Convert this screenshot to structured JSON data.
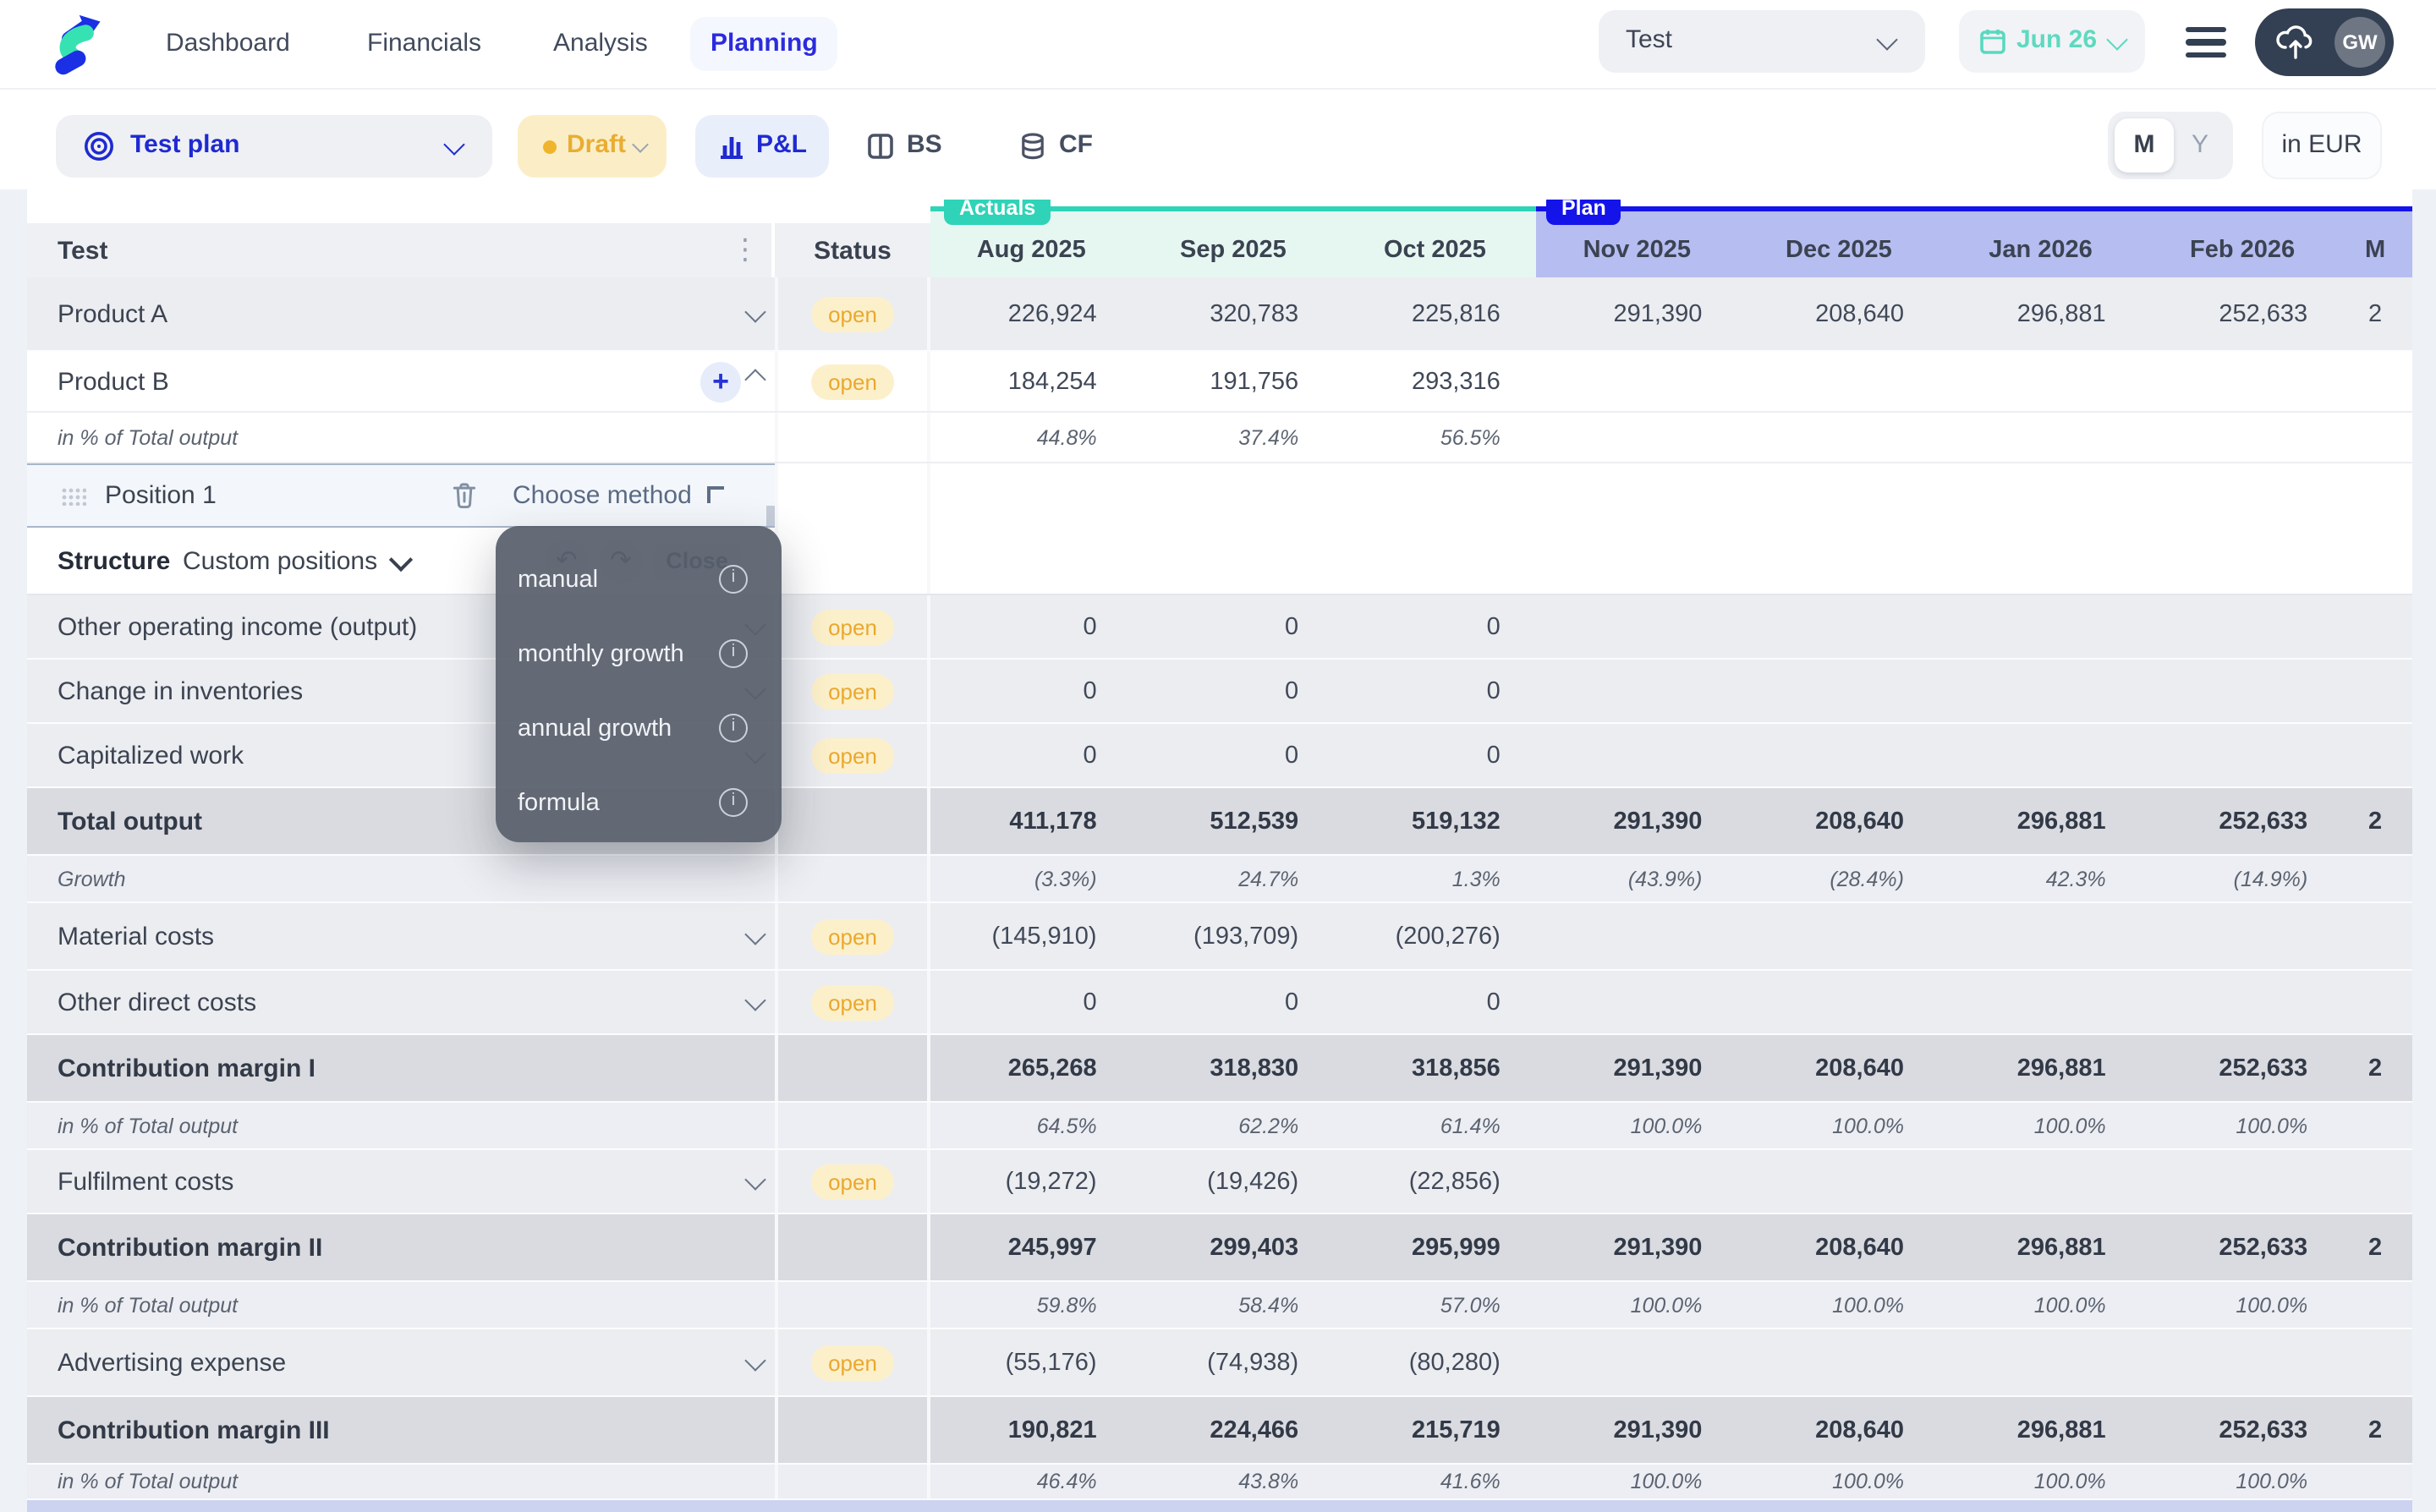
{
  "nav": {
    "items": [
      {
        "label": "Dashboard"
      },
      {
        "label": "Financials"
      },
      {
        "label": "Analysis"
      },
      {
        "label": "Planning"
      }
    ],
    "active": "Planning",
    "workspace": "Test",
    "date": "Jun 26",
    "avatar": "GW"
  },
  "toolbar": {
    "plan_name": "Test plan",
    "plan_status": "Draft",
    "tab_pl": "P&L",
    "tab_bs": "BS",
    "tab_cf": "CF",
    "active_tab": "P&L",
    "period_month": "M",
    "period_year": "Y",
    "active_period": "M",
    "currency": "in EUR"
  },
  "table": {
    "title_col": "Test",
    "status_col": "Status",
    "section_actuals": "Actuals",
    "section_plan": "Plan",
    "months": [
      "Aug 2025",
      "Sep 2025",
      "Oct 2025",
      "Nov 2025",
      "Dec 2025",
      "Jan 2026",
      "Feb 2026",
      "M"
    ],
    "rows": [
      {
        "label": "Product A",
        "type": "group",
        "status": "open",
        "chevron": "down",
        "values": [
          "226,924",
          "320,783",
          "225,816",
          "291,390",
          "208,640",
          "296,881",
          "252,633",
          "2"
        ]
      },
      {
        "label": "Product B",
        "type": "group-open",
        "status": "open",
        "chevron": "up",
        "plus": true,
        "values": [
          "184,254",
          "191,756",
          "293,316",
          "",
          "",
          "",
          "",
          ""
        ]
      },
      {
        "label": "in % of Total output",
        "type": "percent",
        "zone": "white",
        "values": [
          "44.8%",
          "37.4%",
          "56.5%",
          "",
          "",
          "",
          "",
          ""
        ]
      },
      {
        "label": "Position 1",
        "type": "position",
        "method_placeholder": "Choose method",
        "values": [
          "",
          "",
          "",
          "",
          "",
          "",
          "",
          ""
        ]
      },
      {
        "label": "Structure",
        "type": "structure",
        "value": "Custom positions",
        "values": [
          "",
          "",
          "",
          "",
          "",
          "",
          "",
          ""
        ]
      },
      {
        "label": "Other operating income (output)",
        "type": "item",
        "status": "open",
        "chevron": "down",
        "values": [
          "0",
          "0",
          "0",
          "",
          "",
          "",
          "",
          ""
        ]
      },
      {
        "label": "Change in inventories",
        "type": "item",
        "status": "open",
        "chevron": "down",
        "values": [
          "0",
          "0",
          "0",
          "",
          "",
          "",
          "",
          ""
        ]
      },
      {
        "label": "Capitalized work",
        "type": "item",
        "status": "open",
        "chevron": "down",
        "values": [
          "0",
          "0",
          "0",
          "",
          "",
          "",
          "",
          ""
        ]
      },
      {
        "label": "Total output",
        "type": "total",
        "values": [
          "411,178",
          "512,539",
          "519,132",
          "291,390",
          "208,640",
          "296,881",
          "252,633",
          "2"
        ]
      },
      {
        "label": "Growth",
        "type": "percent",
        "values": [
          "(3.3%)",
          "24.7%",
          "1.3%",
          "(43.9%)",
          "(28.4%)",
          "42.3%",
          "(14.9%)",
          ""
        ]
      },
      {
        "label": "Material costs",
        "type": "item",
        "status": "open",
        "chevron": "down",
        "values": [
          "(145,910)",
          "(193,709)",
          "(200,276)",
          "",
          "",
          "",
          "",
          ""
        ]
      },
      {
        "label": "Other direct costs",
        "type": "item",
        "status": "open",
        "chevron": "down",
        "values": [
          "0",
          "0",
          "0",
          "",
          "",
          "",
          "",
          ""
        ]
      },
      {
        "label": "Contribution margin I",
        "type": "total",
        "values": [
          "265,268",
          "318,830",
          "318,856",
          "291,390",
          "208,640",
          "296,881",
          "252,633",
          "2"
        ]
      },
      {
        "label": "in % of Total output",
        "type": "percent",
        "values": [
          "64.5%",
          "62.2%",
          "61.4%",
          "100.0%",
          "100.0%",
          "100.0%",
          "100.0%",
          ""
        ]
      },
      {
        "label": "Fulfilment costs",
        "type": "item",
        "status": "open",
        "chevron": "down",
        "values": [
          "(19,272)",
          "(19,426)",
          "(22,856)",
          "",
          "",
          "",
          "",
          ""
        ]
      },
      {
        "label": "Contribution margin II",
        "type": "total",
        "values": [
          "245,997",
          "299,403",
          "295,999",
          "291,390",
          "208,640",
          "296,881",
          "252,633",
          "2"
        ]
      },
      {
        "label": "in % of Total output",
        "type": "percent",
        "values": [
          "59.8%",
          "58.4%",
          "57.0%",
          "100.0%",
          "100.0%",
          "100.0%",
          "100.0%",
          ""
        ]
      },
      {
        "label": "Advertising expense",
        "type": "item",
        "status": "open",
        "chevron": "down",
        "values": [
          "(55,176)",
          "(74,938)",
          "(80,280)",
          "",
          "",
          "",
          "",
          ""
        ]
      },
      {
        "label": "Contribution margin III",
        "type": "total",
        "values": [
          "190,821",
          "224,466",
          "215,719",
          "291,390",
          "208,640",
          "296,881",
          "252,633",
          "2"
        ]
      },
      {
        "label": "in % of Total output",
        "type": "percent",
        "values": [
          "46.4%",
          "43.8%",
          "41.6%",
          "100.0%",
          "100.0%",
          "100.0%",
          "100.0%",
          ""
        ]
      }
    ],
    "status_badge": "open"
  },
  "method_menu": {
    "items": [
      {
        "label": "manual"
      },
      {
        "label": "monthly growth"
      },
      {
        "label": "annual growth"
      },
      {
        "label": "formula"
      }
    ],
    "close_label": "Close"
  },
  "colors": {
    "accent_blue": "#1f2ad0",
    "actuals_teal": "#2fd3b7",
    "plan_blue": "#1313ea",
    "plan_header_bg": "#b6bdf0",
    "actuals_header_bg": "#e6f7f1",
    "draft_yellow": "#e9ad33",
    "open_badge_bg": "#fcf0cb",
    "dark_navy": "#333f52"
  }
}
